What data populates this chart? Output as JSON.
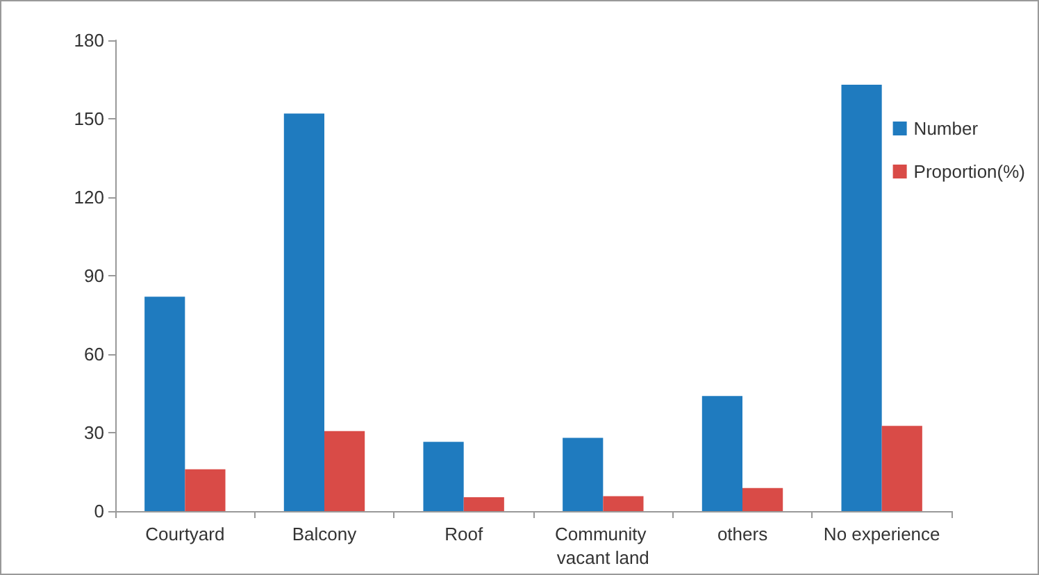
{
  "chart_data": {
    "type": "bar",
    "categories": [
      "Courtyard",
      "Balcony",
      "Roof",
      "Community vacant land",
      "others",
      "No experience"
    ],
    "series": [
      {
        "name": "Number",
        "color": "#1f7bbf",
        "values": [
          82,
          152,
          26.5,
          28,
          44,
          163
        ]
      },
      {
        "name": "Proportion(%)",
        "color": "#d94b47",
        "values": [
          16,
          30.6,
          5.3,
          5.7,
          8.8,
          32.6
        ]
      }
    ],
    "ylim": [
      0,
      180
    ],
    "yticks": [
      0,
      30,
      60,
      90,
      120,
      150,
      180
    ],
    "grid": false,
    "legend": "right"
  }
}
